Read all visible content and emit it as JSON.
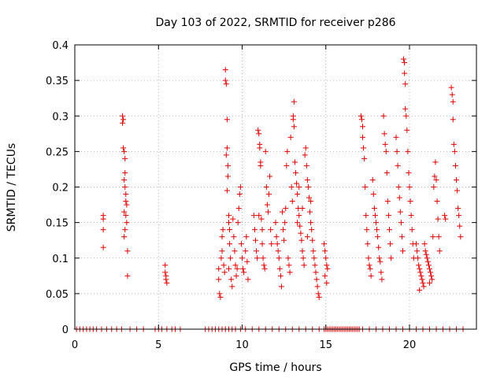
{
  "chart_data": {
    "type": "scatter",
    "title": "Day 103 of 2022, SRMTID for receiver p286",
    "xlabel": "GPS time / hours",
    "ylabel": "SRMTID / TECUs",
    "xlim": [
      0,
      24
    ],
    "ylim": [
      0,
      0.4
    ],
    "xticks": [
      0,
      5,
      10,
      15,
      20
    ],
    "xtick_labels": [
      "0",
      "5",
      "10",
      "15",
      "20"
    ],
    "yticks": [
      0,
      0.05,
      0.1,
      0.15,
      0.2,
      0.25,
      0.3,
      0.35,
      0.4
    ],
    "ytick_labels": [
      "0",
      "0.05",
      "0.1",
      "0.15",
      "0.2",
      "0.25",
      "0.3",
      "0.35",
      "0.4"
    ],
    "grid": true,
    "marker": "+",
    "series": [
      {
        "name": "SRMTID",
        "color": "#e00000",
        "points": [
          [
            1.7,
            0.16
          ],
          [
            1.7,
            0.155
          ],
          [
            1.7,
            0.14
          ],
          [
            1.7,
            0.115
          ],
          [
            2.85,
            0.3
          ],
          [
            2.85,
            0.29
          ],
          [
            2.9,
            0.295
          ],
          [
            2.9,
            0.255
          ],
          [
            2.95,
            0.25
          ],
          [
            3.0,
            0.24
          ],
          [
            3.0,
            0.22
          ],
          [
            2.95,
            0.21
          ],
          [
            3.0,
            0.2
          ],
          [
            3.05,
            0.19
          ],
          [
            3.05,
            0.18
          ],
          [
            3.1,
            0.175
          ],
          [
            2.95,
            0.165
          ],
          [
            3.05,
            0.16
          ],
          [
            3.1,
            0.15
          ],
          [
            3.0,
            0.14
          ],
          [
            2.95,
            0.13
          ],
          [
            3.15,
            0.11
          ],
          [
            3.15,
            0.075
          ],
          [
            5.4,
            0.09
          ],
          [
            5.4,
            0.08
          ],
          [
            5.45,
            0.075
          ],
          [
            5.45,
            0.07
          ],
          [
            5.5,
            0.065
          ],
          [
            8.6,
            0.085
          ],
          [
            8.6,
            0.07
          ],
          [
            8.65,
            0.05
          ],
          [
            8.7,
            0.045
          ],
          [
            8.75,
            0.1
          ],
          [
            8.8,
            0.11
          ],
          [
            8.8,
            0.13
          ],
          [
            8.85,
            0.14
          ],
          [
            8.9,
            0.09
          ],
          [
            8.95,
            0.08
          ],
          [
            9.0,
            0.365
          ],
          [
            9.0,
            0.35
          ],
          [
            9.05,
            0.345
          ],
          [
            9.1,
            0.295
          ],
          [
            9.1,
            0.255
          ],
          [
            9.05,
            0.245
          ],
          [
            9.15,
            0.23
          ],
          [
            9.15,
            0.215
          ],
          [
            9.1,
            0.195
          ],
          [
            9.2,
            0.16
          ],
          [
            9.2,
            0.15
          ],
          [
            9.25,
            0.14
          ],
          [
            9.25,
            0.12
          ],
          [
            9.3,
            0.1
          ],
          [
            9.2,
            0.085
          ],
          [
            9.35,
            0.07
          ],
          [
            9.4,
            0.06
          ],
          [
            9.45,
            0.155
          ],
          [
            9.5,
            0.13
          ],
          [
            9.55,
            0.11
          ],
          [
            9.6,
            0.09
          ],
          [
            9.65,
            0.075
          ],
          [
            9.7,
            0.085
          ],
          [
            9.75,
            0.15
          ],
          [
            9.8,
            0.17
          ],
          [
            9.85,
            0.19
          ],
          [
            9.9,
            0.2
          ],
          [
            9.95,
            0.12
          ],
          [
            10.0,
            0.1
          ],
          [
            10.05,
            0.085
          ],
          [
            10.1,
            0.08
          ],
          [
            10.2,
            0.11
          ],
          [
            10.25,
            0.13
          ],
          [
            10.3,
            0.095
          ],
          [
            10.35,
            0.07
          ],
          [
            10.7,
            0.16
          ],
          [
            10.75,
            0.14
          ],
          [
            10.8,
            0.125
          ],
          [
            10.85,
            0.11
          ],
          [
            10.9,
            0.1
          ],
          [
            10.95,
            0.28
          ],
          [
            11.0,
            0.275
          ],
          [
            11.05,
            0.26
          ],
          [
            11.05,
            0.255
          ],
          [
            11.1,
            0.235
          ],
          [
            11.1,
            0.23
          ],
          [
            11.0,
            0.16
          ],
          [
            11.15,
            0.155
          ],
          [
            11.2,
            0.14
          ],
          [
            11.2,
            0.12
          ],
          [
            11.25,
            0.1
          ],
          [
            11.3,
            0.09
          ],
          [
            11.35,
            0.085
          ],
          [
            11.4,
            0.25
          ],
          [
            11.45,
            0.2
          ],
          [
            11.5,
            0.175
          ],
          [
            11.55,
            0.165
          ],
          [
            11.6,
            0.19
          ],
          [
            11.65,
            0.215
          ],
          [
            11.7,
            0.14
          ],
          [
            11.75,
            0.12
          ],
          [
            12.0,
            0.15
          ],
          [
            12.05,
            0.13
          ],
          [
            12.1,
            0.12
          ],
          [
            12.15,
            0.11
          ],
          [
            12.2,
            0.1
          ],
          [
            12.25,
            0.085
          ],
          [
            12.3,
            0.075
          ],
          [
            12.35,
            0.06
          ],
          [
            12.4,
            0.165
          ],
          [
            12.45,
            0.14
          ],
          [
            12.5,
            0.125
          ],
          [
            12.55,
            0.15
          ],
          [
            12.6,
            0.17
          ],
          [
            12.65,
            0.23
          ],
          [
            12.7,
            0.25
          ],
          [
            12.75,
            0.1
          ],
          [
            12.8,
            0.09
          ],
          [
            12.85,
            0.08
          ],
          [
            12.9,
            0.27
          ],
          [
            12.95,
            0.2
          ],
          [
            13.0,
            0.18
          ],
          [
            13.05,
            0.295
          ],
          [
            13.05,
            0.3
          ],
          [
            13.1,
            0.32
          ],
          [
            13.1,
            0.285
          ],
          [
            13.15,
            0.235
          ],
          [
            13.2,
            0.22
          ],
          [
            13.25,
            0.205
          ],
          [
            13.3,
            0.19
          ],
          [
            13.35,
            0.17
          ],
          [
            13.4,
            0.16
          ],
          [
            13.45,
            0.145
          ],
          [
            13.5,
            0.135
          ],
          [
            13.55,
            0.125
          ],
          [
            13.6,
            0.11
          ],
          [
            13.65,
            0.1
          ],
          [
            13.7,
            0.09
          ],
          [
            13.75,
            0.245
          ],
          [
            13.8,
            0.255
          ],
          [
            13.85,
            0.23
          ],
          [
            13.9,
            0.21
          ],
          [
            13.95,
            0.2
          ],
          [
            14.0,
            0.185
          ],
          [
            14.05,
            0.165
          ],
          [
            14.1,
            0.15
          ],
          [
            14.15,
            0.14
          ],
          [
            14.2,
            0.125
          ],
          [
            14.25,
            0.11
          ],
          [
            14.3,
            0.1
          ],
          [
            14.35,
            0.09
          ],
          [
            14.4,
            0.08
          ],
          [
            14.45,
            0.07
          ],
          [
            14.5,
            0.06
          ],
          [
            14.55,
            0.05
          ],
          [
            14.6,
            0.045
          ],
          [
            13.3,
            0.15
          ],
          [
            13.4,
            0.2
          ],
          [
            13.6,
            0.17
          ],
          [
            13.9,
            0.13
          ],
          [
            14.1,
            0.18
          ],
          [
            14.9,
            0.12
          ],
          [
            14.95,
            0.11
          ],
          [
            15.0,
            0.1
          ],
          [
            15.05,
            0.09
          ],
          [
            15.1,
            0.085
          ],
          [
            14.95,
            0.075
          ],
          [
            15.05,
            0.065
          ],
          [
            17.1,
            0.3
          ],
          [
            17.15,
            0.295
          ],
          [
            17.2,
            0.285
          ],
          [
            17.2,
            0.27
          ],
          [
            17.25,
            0.255
          ],
          [
            17.3,
            0.24
          ],
          [
            17.35,
            0.2
          ],
          [
            17.4,
            0.16
          ],
          [
            17.45,
            0.14
          ],
          [
            17.5,
            0.12
          ],
          [
            17.55,
            0.1
          ],
          [
            17.6,
            0.09
          ],
          [
            17.65,
            0.085
          ],
          [
            17.7,
            0.075
          ],
          [
            17.8,
            0.21
          ],
          [
            17.85,
            0.19
          ],
          [
            17.9,
            0.17
          ],
          [
            17.95,
            0.16
          ],
          [
            18.0,
            0.15
          ],
          [
            18.05,
            0.14
          ],
          [
            18.1,
            0.13
          ],
          [
            18.15,
            0.115
          ],
          [
            18.2,
            0.1
          ],
          [
            18.25,
            0.095
          ],
          [
            18.3,
            0.08
          ],
          [
            18.35,
            0.07
          ],
          [
            18.45,
            0.3
          ],
          [
            18.5,
            0.275
          ],
          [
            18.55,
            0.26
          ],
          [
            18.6,
            0.25
          ],
          [
            18.65,
            0.22
          ],
          [
            18.7,
            0.18
          ],
          [
            18.75,
            0.16
          ],
          [
            18.8,
            0.14
          ],
          [
            18.85,
            0.12
          ],
          [
            18.9,
            0.1
          ],
          [
            19.2,
            0.27
          ],
          [
            19.25,
            0.25
          ],
          [
            19.3,
            0.23
          ],
          [
            19.35,
            0.2
          ],
          [
            19.4,
            0.185
          ],
          [
            19.45,
            0.165
          ],
          [
            19.5,
            0.15
          ],
          [
            19.55,
            0.13
          ],
          [
            19.6,
            0.11
          ],
          [
            19.65,
            0.38
          ],
          [
            19.7,
            0.375
          ],
          [
            19.7,
            0.36
          ],
          [
            19.75,
            0.345
          ],
          [
            19.75,
            0.31
          ],
          [
            19.8,
            0.3
          ],
          [
            19.85,
            0.28
          ],
          [
            19.9,
            0.25
          ],
          [
            19.95,
            0.22
          ],
          [
            20.0,
            0.2
          ],
          [
            20.05,
            0.18
          ],
          [
            20.1,
            0.16
          ],
          [
            20.15,
            0.14
          ],
          [
            20.2,
            0.12
          ],
          [
            20.25,
            0.1
          ],
          [
            20.4,
            0.12
          ],
          [
            20.45,
            0.11
          ],
          [
            20.5,
            0.1
          ],
          [
            20.55,
            0.09
          ],
          [
            20.6,
            0.085
          ],
          [
            20.65,
            0.08
          ],
          [
            20.7,
            0.075
          ],
          [
            20.75,
            0.07
          ],
          [
            20.8,
            0.065
          ],
          [
            20.85,
            0.06
          ],
          [
            20.9,
            0.12
          ],
          [
            20.95,
            0.11
          ],
          [
            21.0,
            0.105
          ],
          [
            21.05,
            0.1
          ],
          [
            21.1,
            0.095
          ],
          [
            21.15,
            0.09
          ],
          [
            21.2,
            0.085
          ],
          [
            21.25,
            0.08
          ],
          [
            21.3,
            0.075
          ],
          [
            21.35,
            0.07
          ],
          [
            21.4,
            0.13
          ],
          [
            21.45,
            0.2
          ],
          [
            21.5,
            0.215
          ],
          [
            21.55,
            0.235
          ],
          [
            21.6,
            0.21
          ],
          [
            21.65,
            0.18
          ],
          [
            21.7,
            0.155
          ],
          [
            21.75,
            0.13
          ],
          [
            21.8,
            0.11
          ],
          [
            20.6,
            0.055
          ],
          [
            21.2,
            0.065
          ],
          [
            22.1,
            0.16
          ],
          [
            22.15,
            0.155
          ],
          [
            22.5,
            0.34
          ],
          [
            22.55,
            0.33
          ],
          [
            22.6,
            0.32
          ],
          [
            22.6,
            0.295
          ],
          [
            22.65,
            0.26
          ],
          [
            22.7,
            0.25
          ],
          [
            22.75,
            0.23
          ],
          [
            22.8,
            0.21
          ],
          [
            22.85,
            0.195
          ],
          [
            22.9,
            0.17
          ],
          [
            22.95,
            0.16
          ],
          [
            23.0,
            0.145
          ],
          [
            23.05,
            0.13
          ]
        ]
      }
    ],
    "zero_points": [
      0.1,
      0.3,
      0.5,
      0.7,
      0.9,
      1.1,
      1.3,
      1.6,
      1.9,
      2.2,
      2.5,
      2.8,
      3.3,
      3.7,
      4.1,
      4.8,
      5.0,
      5.2,
      5.5,
      5.8,
      6.0,
      6.3,
      7.8,
      8.0,
      8.2,
      8.4,
      8.6,
      8.8,
      9.0,
      9.2,
      9.4,
      9.6,
      9.9,
      10.2,
      10.6,
      11.0,
      11.4,
      11.8,
      12.2,
      12.6,
      13.0,
      13.4,
      13.8,
      14.2,
      14.6,
      14.9,
      15.0,
      15.1,
      15.2,
      15.3,
      15.4,
      15.5,
      15.6,
      15.7,
      15.8,
      15.9,
      16.0,
      16.1,
      16.2,
      16.3,
      16.4,
      16.5,
      16.6,
      16.7,
      16.8,
      16.9,
      17.0,
      17.2,
      17.6,
      18.0,
      18.4,
      18.8,
      19.2,
      19.6,
      20.0,
      20.4,
      20.8,
      21.2,
      21.6,
      22.0,
      22.4,
      22.8,
      23.2
    ]
  }
}
